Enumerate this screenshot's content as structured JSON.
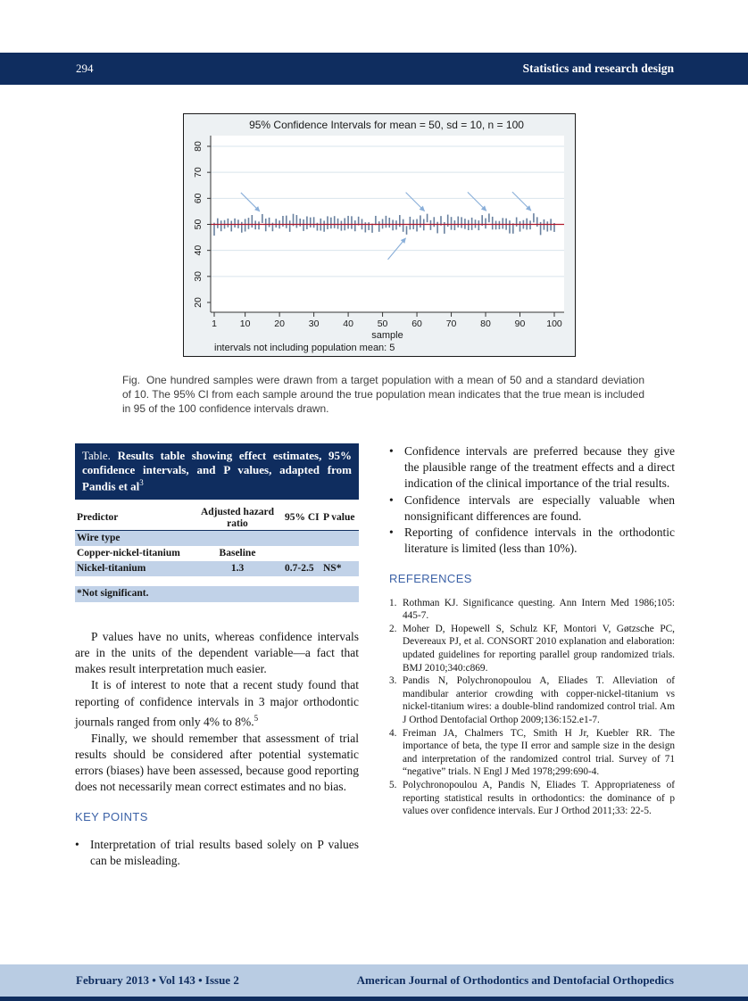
{
  "header": {
    "page_number": "294",
    "running_head": "Statistics and research design"
  },
  "chart_data": {
    "type": "ci-interval-plot",
    "title": "95% Confidence Intervals for mean = 50, sd = 10, n = 100",
    "xlabel": "sample",
    "annotation": "intervals not including population mean: 5",
    "x_ticks": [
      1,
      10,
      20,
      30,
      40,
      50,
      60,
      70,
      80,
      90,
      100
    ],
    "y_ticks": [
      20,
      30,
      40,
      50,
      60,
      70,
      80
    ],
    "xlim": [
      1,
      100
    ],
    "ylim": [
      20,
      80
    ],
    "population_mean": 50,
    "n_samples": 100,
    "ci_halfwidth_approx": 2,
    "intervals_missing_mean": {
      "above": [
        15,
        63,
        81,
        94
      ],
      "below": [
        57
      ]
    },
    "seed": 7,
    "grid": true,
    "colors": {
      "bar": "#69819f",
      "mean_line": "#b0182c",
      "arrow": "#8aafd9",
      "grid": "#d9e4ec",
      "plot_bg": "#ffffff",
      "figure_bg": "#edf1f3",
      "axis": "#333333",
      "text": "#1a1a1a"
    }
  },
  "figure": {
    "caption_label": "Fig.",
    "caption_text": "One hundred samples were drawn from a target population with a mean of 50 and a standard deviation of 10. The 95% CI from each sample around the true population mean indicates that the true mean is included in 95 of the 100 confidence intervals drawn."
  },
  "table": {
    "title_prefix": "Table.",
    "title_text": "Results table showing effect estimates, 95% confidence intervals, and P values, adapted from Pandis et al",
    "title_sup": "3",
    "columns": [
      "Predictor",
      "Adjusted hazard ratio",
      "95% CI",
      "P value"
    ],
    "group_row": "Wire type",
    "rows": [
      {
        "predictor": "Copper-nickel-titanium",
        "ratio": "Baseline",
        "ci": "",
        "p": ""
      },
      {
        "predictor": "Nickel-titanium",
        "ratio": "1.3",
        "ci": "0.7-2.5",
        "p": "NS*"
      }
    ],
    "footnote": "*Not significant."
  },
  "left_column": {
    "paragraphs": [
      {
        "text": "P values have no units, whereas confidence intervals are in the units of the dependent variable—a fact that makes result interpretation much easier."
      },
      {
        "text": "It is of interest to note that a recent study found that reporting of confidence intervals in 3 major orthodontic journals ranged from only 4% to 8%.",
        "sup": "5"
      },
      {
        "text": "Finally, we should remember that assessment of trial results should be considered after potential systematic errors (biases) have been assessed, because good reporting does not necessarily mean correct estimates and no bias."
      }
    ],
    "key_points_heading": "KEY POINTS",
    "key_points": [
      "Interpretation of trial results based solely on P values can be misleading."
    ]
  },
  "right_column": {
    "bullets": [
      "Confidence intervals are preferred because they give the plausible range of the treatment effects and a direct indication of the clinical importance of the trial results.",
      "Confidence intervals are especially valuable when nonsignificant differences are found.",
      "Reporting of confidence intervals in the orthodontic literature is limited (less than 10%)."
    ],
    "references_heading": "REFERENCES",
    "references": [
      "Rothman KJ. Significance questing. Ann Intern Med 1986;105: 445-7.",
      "Moher D, Hopewell S, Schulz KF, Montori V, Gøtzsche PC, Devereaux PJ, et al. CONSORT 2010 explanation and elaboration: updated guidelines for reporting parallel group randomized trials. BMJ 2010;340:c869.",
      "Pandis N, Polychronopoulou A, Eliades T. Alleviation of mandibular anterior crowding with copper-nickel-titanium vs nickel-titanium wires: a double-blind randomized control trial. Am J Orthod Dentofacial Orthop 2009;136:152.e1-7.",
      "Freiman JA, Chalmers TC, Smith H Jr, Kuebler RR. The importance of beta, the type II error and sample size in the design and interpretation of the randomized control trial. Survey of 71 “negative” trials. N Engl J Med 1978;299:690-4.",
      "Polychronopoulou A, Pandis N, Eliades T. Appropriateness of reporting statistical results in orthodontics: the dominance of p values over confidence intervals. Eur J Orthod 2011;33: 22-5."
    ]
  },
  "footer": {
    "issue_info": "February 2013 • Vol 143 • Issue 2",
    "journal_name": "American Journal of Orthodontics and Dentofacial Orthopedics"
  },
  "ui": {
    "bullet_char": "•",
    "ref_num_suffix": "."
  }
}
